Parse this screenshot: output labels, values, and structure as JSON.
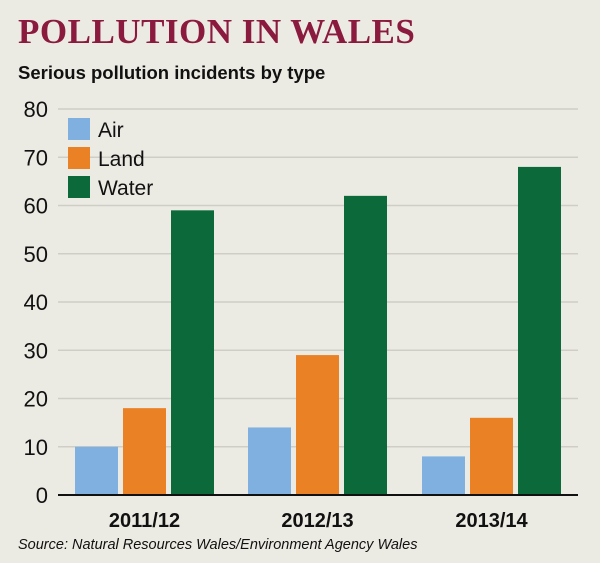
{
  "header": {
    "title": "POLLUTION IN WALES",
    "subtitle": "Serious pollution incidents by type"
  },
  "footer": {
    "source": "Source: Natural Resources Wales/Environment Agency Wales"
  },
  "colors": {
    "background": "#ecebe3",
    "gridline": "#cfcec6",
    "title": "#8b1a3f",
    "air": "#7fb0e0",
    "land": "#eb8125",
    "water": "#0c6a3a"
  },
  "chart_data": {
    "type": "bar",
    "categories": [
      "2011/12",
      "2012/13",
      "2013/14"
    ],
    "series": [
      {
        "name": "Air",
        "values": [
          10,
          14,
          8
        ],
        "color": "#7fb0e0"
      },
      {
        "name": "Land",
        "values": [
          18,
          29,
          16
        ],
        "color": "#eb8125"
      },
      {
        "name": "Water",
        "values": [
          59,
          62,
          68
        ],
        "color": "#0c6a3a"
      }
    ],
    "title": "POLLUTION IN WALES",
    "subtitle": "Serious pollution incidents by type",
    "ylim": [
      0,
      80
    ],
    "yticks": [
      0,
      10,
      20,
      30,
      40,
      50,
      60,
      70,
      80
    ],
    "grid": true,
    "legend": "top-left"
  }
}
